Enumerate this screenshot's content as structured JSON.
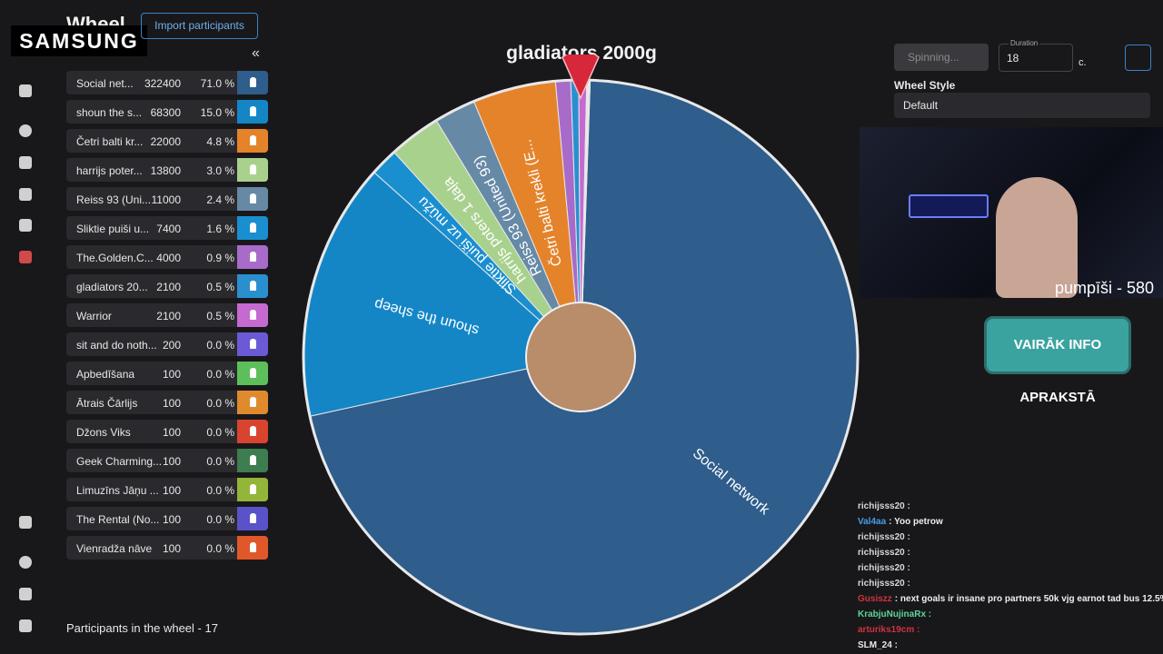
{
  "brand": "SAMSUNG",
  "header": {
    "title": "Wheel",
    "import_button": "Import participants",
    "collapse": "«"
  },
  "participants": [
    {
      "name": "Social net...",
      "amount": 322400,
      "percent": "71.0 %",
      "color": "#2f5d8c",
      "wheel_label": "Social network"
    },
    {
      "name": "shoun the s...",
      "amount": 68300,
      "percent": "15.0 %",
      "color": "#1486c6",
      "wheel_label": "shoun the sheep"
    },
    {
      "name": "Četri balti kr...",
      "amount": 22000,
      "percent": "4.8 %",
      "color": "#e5832a",
      "wheel_label": "Četri balti krekli (E..."
    },
    {
      "name": "harrijs poter...",
      "amount": 13800,
      "percent": "3.0 %",
      "color": "#a9d18e",
      "wheel_label": "harrijs poters 1 daļa"
    },
    {
      "name": "Reiss 93 (Uni...",
      "amount": 11000,
      "percent": "2.4 %",
      "color": "#6689a6",
      "wheel_label": "Reiss 93 (United 93)"
    },
    {
      "name": "Sliktie puiši u...",
      "amount": 7400,
      "percent": "1.6 %",
      "color": "#1a8fd0",
      "wheel_label": "Sliktie puiši uz mūžu"
    },
    {
      "name": "The.Golden.C...",
      "amount": 4000,
      "percent": "0.9 %",
      "color": "#a86bc9"
    },
    {
      "name": "gladiators 20...",
      "amount": 2100,
      "percent": "0.5 %",
      "color": "#2a8fcf"
    },
    {
      "name": "Warrior",
      "amount": 2100,
      "percent": "0.5 %",
      "color": "#c56ad0"
    },
    {
      "name": "sit and do noth...",
      "amount": 200,
      "percent": "0.0 %",
      "color": "#6a5ad6"
    },
    {
      "name": "Apbedīšana",
      "amount": 100,
      "percent": "0.0 %",
      "color": "#5cbf5a"
    },
    {
      "name": "Ātrais Čārlijs",
      "amount": 100,
      "percent": "0.0 %",
      "color": "#e08a2e"
    },
    {
      "name": "Džons Viks",
      "amount": 100,
      "percent": "0.0 %",
      "color": "#d9442f"
    },
    {
      "name": "Geek Charming...",
      "amount": 100,
      "percent": "0.0 %",
      "color": "#3e7d4f"
    },
    {
      "name": "Limuzīns Jāņu ...",
      "amount": 100,
      "percent": "0.0 %",
      "color": "#93b53a"
    },
    {
      "name": "The Rental (No...",
      "amount": 100,
      "percent": "0.0 %",
      "color": "#5a52c8"
    },
    {
      "name": "Vienradža nāve",
      "amount": 100,
      "percent": "0.0 %",
      "color": "#e0582a"
    }
  ],
  "wheel_title": "gladiators 2000g",
  "footer": "Participants in the wheel - 17",
  "controls": {
    "spin_button": "Spinning...",
    "duration_label": "Duration",
    "duration_value": "18",
    "duration_unit": "c.",
    "style_label": "Wheel Style",
    "style_value": "Default"
  },
  "stream": {
    "overlay": "pumpīši - 580",
    "banner": "VAIRĀK INFO APRAKSTĀ"
  },
  "chat": [
    {
      "user": "richijsss20 :",
      "color": "#d8d8d8",
      "text": ""
    },
    {
      "user": "Val4aa",
      "color": "#4a9be8",
      "text": ": Yoo petrow"
    },
    {
      "user": "richijsss20 :",
      "color": "#d8d8d8",
      "text": ""
    },
    {
      "user": "richijsss20 :",
      "color": "#d8d8d8",
      "text": ""
    },
    {
      "user": "richijsss20 :",
      "color": "#d8d8d8",
      "text": ""
    },
    {
      "user": "richijsss20 :",
      "color": "#d8d8d8",
      "text": ""
    },
    {
      "user": "Gusiszz",
      "color": "#d0343a",
      "text": ": next goals ir insane pro partners 50k vjg earnot tad bus 12.5%"
    },
    {
      "user": "KrabjuNujinaRx :",
      "color": "#5fd39a",
      "text": ""
    },
    {
      "user": "arturiks19cm :",
      "color": "#d0343a",
      "text": ""
    },
    {
      "user": "SLM_24 :",
      "color": "#e8e8e8",
      "text": ""
    }
  ]
}
